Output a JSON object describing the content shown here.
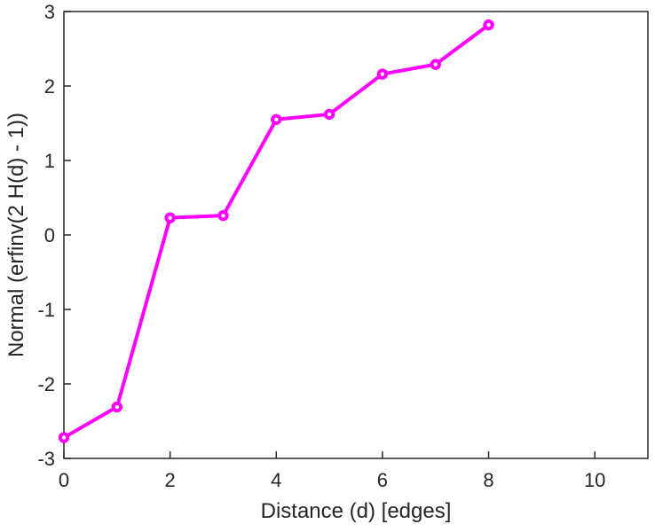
{
  "chart_data": {
    "type": "line",
    "x": [
      0,
      1,
      2,
      3,
      4,
      5,
      6,
      7,
      8
    ],
    "y": [
      -2.72,
      -2.31,
      0.23,
      0.26,
      1.55,
      1.62,
      2.16,
      2.29,
      2.82
    ],
    "xlabel": "Distance (d) [edges]",
    "ylabel": "Normal (erfinv(2 H(d) - 1))",
    "title": "",
    "xlim": [
      0,
      11
    ],
    "ylim": [
      -3,
      3
    ],
    "xticks": [
      0,
      2,
      4,
      6,
      8,
      10
    ],
    "yticks": [
      -3,
      -2,
      -1,
      0,
      1,
      2,
      3
    ],
    "grid": false,
    "legend": "none",
    "line_color": "#FF00FF",
    "axis_color": "#262626",
    "marker": "circle",
    "line_width": 4
  }
}
